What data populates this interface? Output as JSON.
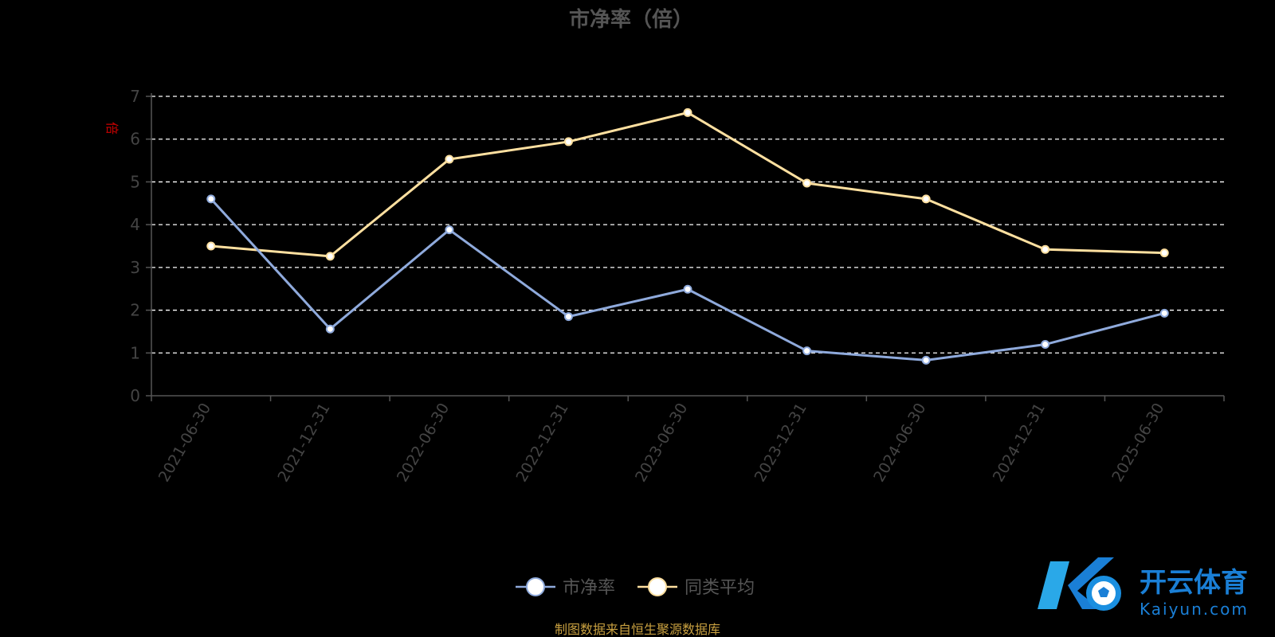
{
  "chart_data": {
    "type": "line",
    "title": "市净率（倍）",
    "ylabel": "倍",
    "xlabel": "",
    "ylim": [
      0,
      7
    ],
    "yticks": [
      0,
      1,
      2,
      3,
      4,
      5,
      6,
      7
    ],
    "grid": true,
    "legend_position": "bottom",
    "categories": [
      "2021-06-30",
      "2021-12-31",
      "2022-06-30",
      "2022-12-31",
      "2023-06-30",
      "2023-12-31",
      "2024-06-30",
      "2024-12-31",
      "2025-06-30"
    ],
    "series": [
      {
        "name": "市净率",
        "color": "#8faadc",
        "values": [
          4.6,
          1.56,
          3.88,
          1.85,
          2.49,
          1.05,
          0.83,
          1.2,
          1.93
        ]
      },
      {
        "name": "同类平均",
        "color": "#ffe0a0",
        "values": [
          3.5,
          3.26,
          5.53,
          5.94,
          6.62,
          4.97,
          4.6,
          3.42,
          3.34
        ]
      }
    ]
  },
  "source_note": "制图数据来自恒生聚源数据库",
  "watermark": {
    "cn": "开云体育",
    "en": "Kaiyun.com"
  }
}
